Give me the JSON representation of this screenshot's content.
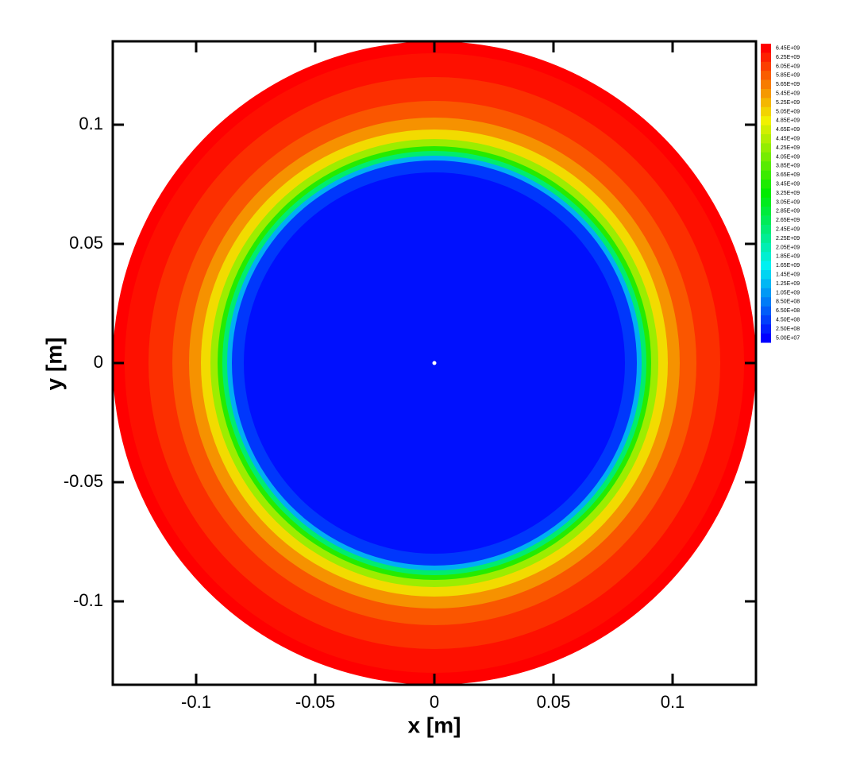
{
  "chart_data": {
    "type": "contour",
    "x_label": "x [m]",
    "y_label": "y [m]",
    "xlim": [
      -0.135,
      0.135
    ],
    "ylim": [
      -0.135,
      0.135
    ],
    "xticks": [
      -0.1,
      -0.05,
      0,
      0.05,
      0.1
    ],
    "yticks": [
      -0.1,
      -0.05,
      0,
      0.05,
      0.1
    ],
    "radial_profile": {
      "r": [
        0,
        0.08,
        0.085,
        0.087,
        0.089,
        0.091,
        0.094,
        0.098,
        0.103,
        0.11,
        0.12,
        0.13,
        0.135
      ],
      "values": [
        100000000,
        150000000,
        400000000,
        1200000000,
        2500000000,
        3500000000,
        4300000000,
        5000000000,
        5500000000,
        5900000000,
        6150000000,
        6350000000,
        6450000000
      ]
    },
    "levels": [
      {
        "value": 6450000000,
        "label": "6.45E+09"
      },
      {
        "value": 6250000000,
        "label": "6.25E+09"
      },
      {
        "value": 6050000000,
        "label": "6.05E+09"
      },
      {
        "value": 5850000000,
        "label": "5.85E+09"
      },
      {
        "value": 5650000000,
        "label": "5.65E+09"
      },
      {
        "value": 5450000000,
        "label": "5.45E+09"
      },
      {
        "value": 5250000000,
        "label": "5.25E+09"
      },
      {
        "value": 5050000000,
        "label": "5.05E+09"
      },
      {
        "value": 4850000000,
        "label": "4.85E+09"
      },
      {
        "value": 4650000000,
        "label": "4.65E+09"
      },
      {
        "value": 4450000000,
        "label": "4.45E+09"
      },
      {
        "value": 4250000000,
        "label": "4.25E+09"
      },
      {
        "value": 4050000000,
        "label": "4.05E+09"
      },
      {
        "value": 3850000000,
        "label": "3.85E+09"
      },
      {
        "value": 3650000000,
        "label": "3.65E+09"
      },
      {
        "value": 3450000000,
        "label": "3.45E+09"
      },
      {
        "value": 3250000000,
        "label": "3.25E+09"
      },
      {
        "value": 3050000000,
        "label": "3.05E+09"
      },
      {
        "value": 2850000000,
        "label": "2.85E+09"
      },
      {
        "value": 2650000000,
        "label": "2.65E+09"
      },
      {
        "value": 2450000000,
        "label": "2.45E+09"
      },
      {
        "value": 2250000000,
        "label": "2.25E+09"
      },
      {
        "value": 2050000000,
        "label": "2.05E+09"
      },
      {
        "value": 1850000000,
        "label": "1.85E+09"
      },
      {
        "value": 1650000000,
        "label": "1.65E+09"
      },
      {
        "value": 1450000000,
        "label": "1.45E+09"
      },
      {
        "value": 1250000000,
        "label": "1.25E+09"
      },
      {
        "value": 1050000000,
        "label": "1.05E+09"
      },
      {
        "value": 850000000,
        "label": "8.50E+08"
      },
      {
        "value": 650000000,
        "label": "6.50E+08"
      },
      {
        "value": 450000000,
        "label": "4.50E+08"
      },
      {
        "value": 250000000,
        "label": "2.50E+08"
      },
      {
        "value": 50000000,
        "label": "5.00E+07"
      }
    ]
  }
}
